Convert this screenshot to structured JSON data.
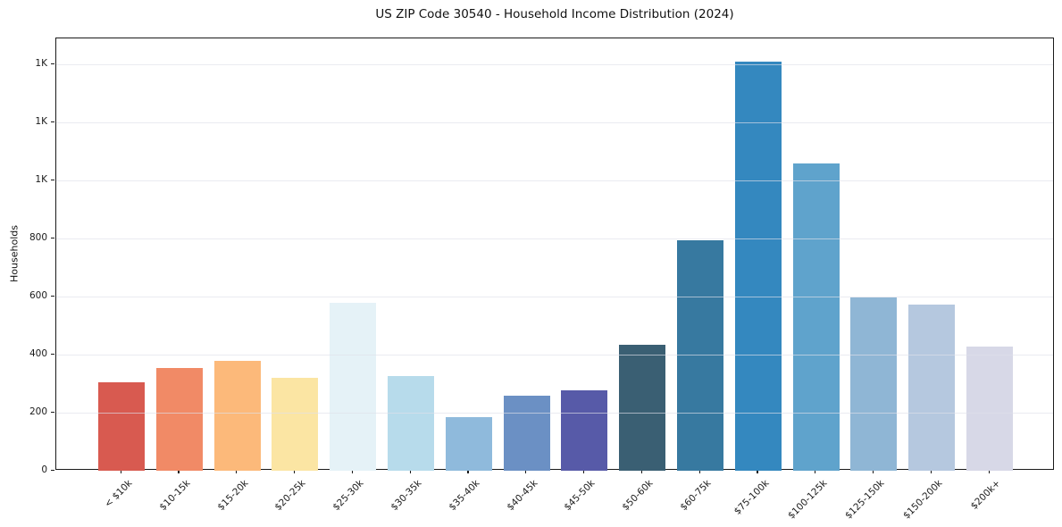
{
  "chart_data": {
    "type": "bar",
    "title": "US ZIP Code 30540 - Household Income Distribution (2024)",
    "xlabel": "",
    "ylabel": "Households",
    "categories": [
      "< $10k",
      "$10-15k",
      "$15-20k",
      "$20-25k",
      "$25-30k",
      "$30-35k",
      "$35-40k",
      "$40-45k",
      "$45-50k",
      "$50-60k",
      "$60-75k",
      "$75-100k",
      "$100-125k",
      "$125-150k",
      "$150-200k",
      "$200k+"
    ],
    "values": [
      306,
      354,
      380,
      319,
      580,
      325,
      185,
      258,
      276,
      434,
      795,
      1410,
      1060,
      597,
      574,
      428
    ],
    "bar_colors": [
      "#d85a50",
      "#f18a66",
      "#fcb97a",
      "#fbe5a3",
      "#e5f2f7",
      "#b7dbeb",
      "#8fbadc",
      "#6b90c4",
      "#575aa8",
      "#3a5f73",
      "#3779a0",
      "#3488bf",
      "#5fa3cc",
      "#8fb6d5",
      "#b5c8df",
      "#d7d8e7"
    ],
    "ylim": [
      0,
      1490
    ],
    "yticks": [
      0,
      200,
      400,
      600,
      800,
      1000,
      1200,
      1400
    ],
    "ytick_labels": [
      "0",
      "200",
      "400",
      "600",
      "800",
      "1K",
      "1K",
      "1K"
    ],
    "grid": "horizontal",
    "gridline_color": "rgba(223,225,234,0.65)",
    "spine_color": "#1a1a1a",
    "background": "#ffffff",
    "legend": "none"
  }
}
